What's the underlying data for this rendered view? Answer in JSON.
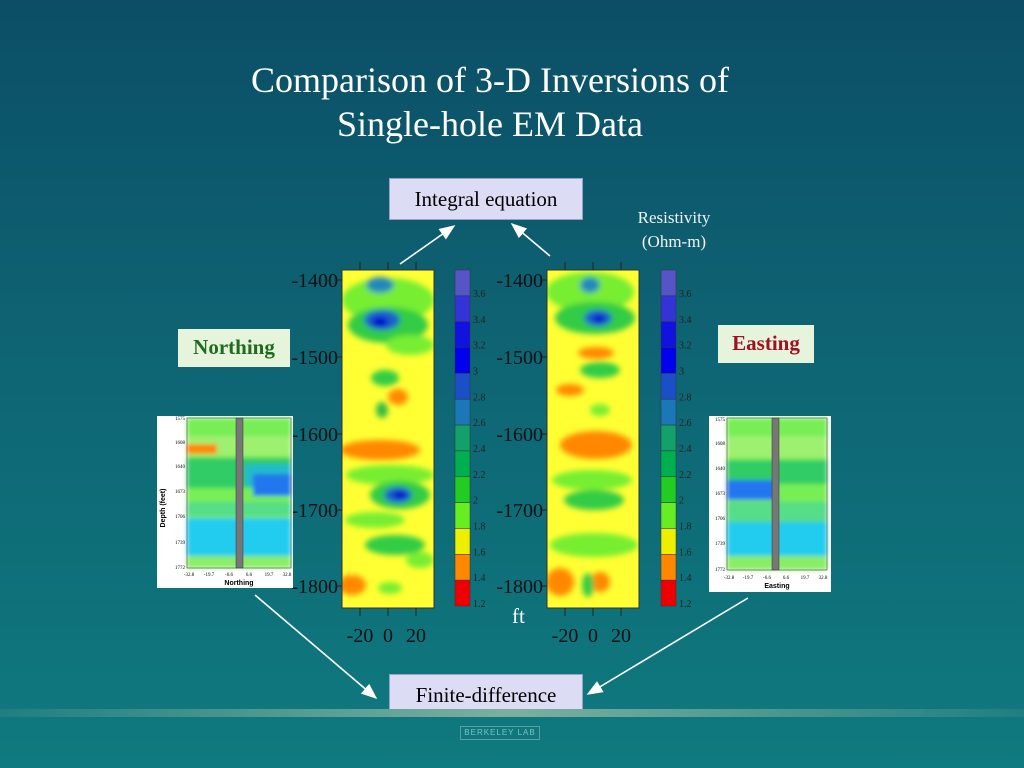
{
  "title": {
    "line1": "Comparison of 3-D Inversions of",
    "line2": "Single-hole EM Data"
  },
  "boxes": {
    "integral": "Integral equation",
    "finite": "Finite-difference",
    "northing": "Northing",
    "easting": "Easting"
  },
  "resistivity_label": {
    "line1": "Resistivity",
    "line2": "(Ohm-m)"
  },
  "unit_label": "ft",
  "depth_ticks": [
    "-1400",
    "-1500",
    "-1600",
    "-1700",
    "-1800"
  ],
  "x_ticks": [
    "-20",
    "0",
    "20"
  ],
  "colorbar_ticks": [
    "3.6",
    "3.4",
    "3.2",
    "3",
    "2.8",
    "2.6",
    "2.4",
    "2.2",
    "2",
    "1.8",
    "1.6",
    "1.4",
    "1.2"
  ],
  "colors": {
    "colorbar": [
      "#5555c8",
      "#3333d8",
      "#1111e0",
      "#0000ee",
      "#1a4fc8",
      "#1b78b8",
      "#14a06a",
      "#00b050",
      "#22cc22",
      "#66ee22",
      "#eeee00",
      "#ff8800",
      "#ee0000"
    ]
  },
  "insets": {
    "left": {
      "ylabel": "Depth (feet)",
      "xlabel": "Northing",
      "y_ticks": [
        "1575",
        "1608",
        "1640",
        "1673",
        "1706",
        "1739",
        "1772"
      ],
      "x_ticks": [
        "-32.8",
        "-19.7",
        "-6.6",
        "6.6",
        "19.7",
        "32.8"
      ]
    },
    "right": {
      "xlabel": "Easting",
      "y_ticks": [
        "1575",
        "1608",
        "1640",
        "1673",
        "1706",
        "1739",
        "1772"
      ],
      "x_ticks": [
        "-32.8",
        "-19.7",
        "-6.6",
        "6.6",
        "19.7",
        "32.8"
      ]
    }
  },
  "logo_text": "BERKELEY LAB"
}
